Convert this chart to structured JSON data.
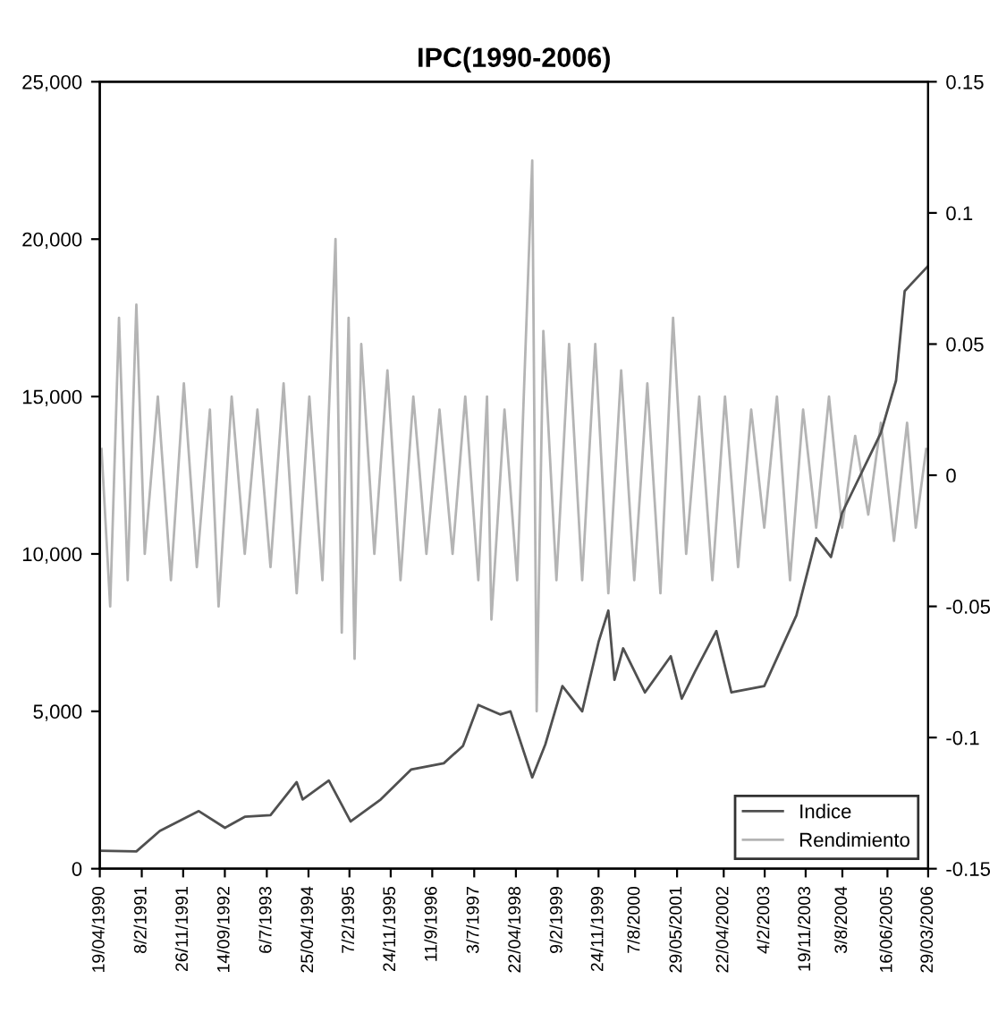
{
  "chart_data": {
    "type": "line",
    "title": "IPC(1990-2006)",
    "xlim": [
      "1990-04-19",
      "2006-03-29"
    ],
    "xticks": [
      {
        "value": "1990-04-19",
        "label": "19/04/1990"
      },
      {
        "value": "1991-02-08",
        "label": "8/2/1991"
      },
      {
        "value": "1991-11-26",
        "label": "26/11/1991"
      },
      {
        "value": "1992-09-14",
        "label": "14/09/1992"
      },
      {
        "value": "1993-07-06",
        "label": "6/7/1993"
      },
      {
        "value": "1994-04-25",
        "label": "25/04/1994"
      },
      {
        "value": "1995-02-07",
        "label": "7/2/1995"
      },
      {
        "value": "1995-11-24",
        "label": "24/11/1995"
      },
      {
        "value": "1996-09-11",
        "label": "11/9/1996"
      },
      {
        "value": "1997-07-03",
        "label": "3/7/1997"
      },
      {
        "value": "1998-04-22",
        "label": "22/04/1998"
      },
      {
        "value": "1999-02-09",
        "label": "9/2/1999"
      },
      {
        "value": "1999-11-24",
        "label": "24/11/1999"
      },
      {
        "value": "2000-08-07",
        "label": "7/8/2000"
      },
      {
        "value": "2001-05-29",
        "label": "29/05/2001"
      },
      {
        "value": "2002-04-22",
        "label": "22/04/2002"
      },
      {
        "value": "2003-02-04",
        "label": "4/2/2003"
      },
      {
        "value": "2003-11-19",
        "label": "19/11/2003"
      },
      {
        "value": "2004-08-03",
        "label": "3/8/2004"
      },
      {
        "value": "2005-06-16",
        "label": "16/06/2005"
      },
      {
        "value": "2006-03-29",
        "label": "29/03/2006"
      }
    ],
    "ylim": [
      0,
      25000
    ],
    "yticks": [
      0,
      {
        "value": 5000,
        "label": "5,000"
      },
      {
        "value": 10000,
        "label": "10,000"
      },
      {
        "value": 15000,
        "label": "15,000"
      },
      {
        "value": 20000,
        "label": "20,000"
      },
      {
        "value": 25000,
        "label": "25,000"
      }
    ],
    "y2lim": [
      -0.15,
      0.15
    ],
    "y2ticks": [
      {
        "value": -0.15,
        "label": "-0.15"
      },
      {
        "value": -0.1,
        "label": "-0.1"
      },
      {
        "value": -0.05,
        "label": "-0.05"
      },
      0,
      0.05,
      0.1,
      0.15
    ],
    "grid": false,
    "legend": "bottom right",
    "series": [
      {
        "name": "Rendimiento",
        "color": "#b4b4b4",
        "axis": "y2",
        "x": [
          "1990-05-01",
          "1990-07-01",
          "1990-09-01",
          "1990-11-01",
          "1991-01-01",
          "1991-03-01",
          "1991-06-01",
          "1991-09-01",
          "1991-12-01",
          "1992-03-01",
          "1992-06-01",
          "1992-08-01",
          "1992-11-01",
          "1993-02-01",
          "1993-05-01",
          "1993-08-01",
          "1993-11-01",
          "1994-02-01",
          "1994-05-01",
          "1994-08-01",
          "1994-11-01",
          "1994-12-15",
          "1995-02-01",
          "1995-03-15",
          "1995-05-01",
          "1995-08-01",
          "1995-11-01",
          "1996-02-01",
          "1996-05-01",
          "1996-08-01",
          "1996-11-01",
          "1997-02-01",
          "1997-05-01",
          "1997-08-01",
          "1997-10-01",
          "1997-11-01",
          "1998-02-01",
          "1998-05-01",
          "1998-08-15",
          "1998-09-15",
          "1998-11-01",
          "1999-02-01",
          "1999-05-01",
          "1999-08-01",
          "1999-11-01",
          "2000-02-01",
          "2000-05-01",
          "2000-08-01",
          "2000-11-01",
          "2001-02-01",
          "2001-05-01",
          "2001-08-01",
          "2001-11-01",
          "2002-02-01",
          "2002-05-01",
          "2002-08-01",
          "2002-11-01",
          "2003-02-01",
          "2003-05-01",
          "2003-08-01",
          "2003-11-01",
          "2004-02-01",
          "2004-05-01",
          "2004-08-01",
          "2004-11-01",
          "2005-02-01",
          "2005-05-01",
          "2005-08-01",
          "2005-11-01",
          "2006-01-01",
          "2006-03-15"
        ],
        "values": [
          0.01,
          -0.05,
          0.06,
          -0.04,
          0.065,
          -0.03,
          0.03,
          -0.04,
          0.035,
          -0.035,
          0.025,
          -0.05,
          0.03,
          -0.03,
          0.025,
          -0.035,
          0.035,
          -0.045,
          0.03,
          -0.04,
          0.09,
          -0.06,
          0.06,
          -0.07,
          0.05,
          -0.03,
          0.04,
          -0.04,
          0.03,
          -0.03,
          0.025,
          -0.03,
          0.03,
          -0.04,
          0.03,
          -0.055,
          0.025,
          -0.04,
          0.12,
          -0.09,
          0.055,
          -0.04,
          0.05,
          -0.04,
          0.05,
          -0.045,
          0.04,
          -0.04,
          0.035,
          -0.045,
          0.06,
          -0.03,
          0.03,
          -0.04,
          0.03,
          -0.035,
          0.025,
          -0.02,
          0.03,
          -0.04,
          0.025,
          -0.02,
          0.03,
          -0.02,
          0.015,
          -0.015,
          0.02,
          -0.025,
          0.02,
          -0.02,
          0.01
        ]
      },
      {
        "name": "Indice",
        "color": "#505050",
        "x": [
          "1990-04-19",
          "1991-01-01",
          "1991-06-15",
          "1992-03-15",
          "1992-09-15",
          "1993-02-01",
          "1993-08-01",
          "1994-02-01",
          "1994-03-15",
          "1994-09-15",
          "1995-02-15",
          "1995-09-15",
          "1996-04-15",
          "1996-12-01",
          "1997-04-15",
          "1997-08-01",
          "1998-01-01",
          "1998-03-15",
          "1998-08-15",
          "1998-11-15",
          "1999-03-15",
          "1999-08-01",
          "1999-11-24",
          "2000-02-01",
          "2000-03-15",
          "2000-05-15",
          "2000-10-15",
          "2001-04-15",
          "2001-07-01",
          "2001-10-01",
          "2002-03-01",
          "2002-06-15",
          "2003-02-01",
          "2003-09-15",
          "2004-02-01",
          "2004-05-15",
          "2004-08-01",
          "2005-05-01",
          "2005-08-15",
          "2005-10-15",
          "2006-03-29"
        ],
        "values": [
          570,
          550,
          1200,
          1830,
          1300,
          1650,
          1700,
          2750,
          2200,
          2800,
          1500,
          2200,
          3150,
          3350,
          3900,
          5200,
          4900,
          5000,
          2900,
          3950,
          5800,
          5000,
          7200,
          8200,
          6000,
          7000,
          5600,
          6750,
          5400,
          6250,
          7550,
          5600,
          5800,
          8050,
          10500,
          9900,
          11300,
          13850,
          15500,
          18350,
          19150
        ]
      }
    ]
  }
}
